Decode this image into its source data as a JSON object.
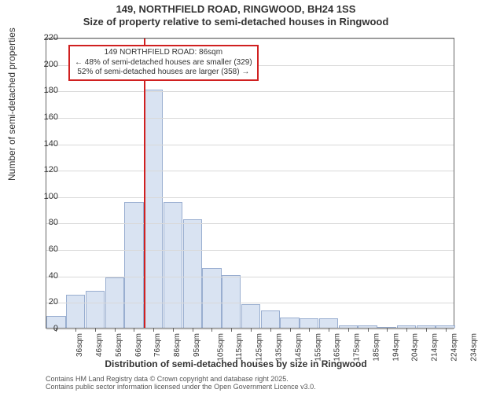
{
  "title_line1": "149, NORTHFIELD ROAD, RINGWOOD, BH24 1SS",
  "title_line2": "Size of property relative to semi-detached houses in Ringwood",
  "ylabel": "Number of semi-detached properties",
  "xlabel": "Distribution of semi-detached houses by size in Ringwood",
  "footer_line1": "Contains HM Land Registry data © Crown copyright and database right 2025.",
  "footer_line2": "Contains public sector information licensed under the Open Government Licence v3.0.",
  "chart": {
    "type": "histogram",
    "background": "#ffffff",
    "plot_border_color": "#666666",
    "grid_color": "#d9d9d9",
    "bar_fill": "#d9e3f2",
    "bar_stroke": "#99aed0",
    "marker_color": "#d02020",
    "ylim": [
      0,
      220
    ],
    "yticks": [
      0,
      20,
      40,
      60,
      80,
      100,
      120,
      140,
      160,
      180,
      200,
      220
    ],
    "xticks": [
      "36sqm",
      "46sqm",
      "56sqm",
      "66sqm",
      "76sqm",
      "86sqm",
      "95sqm",
      "105sqm",
      "115sqm",
      "125sqm",
      "135sqm",
      "145sqm",
      "155sqm",
      "165sqm",
      "175sqm",
      "185sqm",
      "194sqm",
      "204sqm",
      "214sqm",
      "224sqm",
      "234sqm"
    ],
    "values": [
      9,
      25,
      28,
      38,
      95,
      180,
      95,
      82,
      45,
      40,
      18,
      13,
      8,
      7,
      7,
      2,
      2,
      0,
      2,
      2,
      2
    ],
    "marker_index": 5,
    "callout": {
      "line1": "149 NORTHFIELD ROAD: 86sqm",
      "line2": "← 48% of semi-detached houses are smaller (329)",
      "line3": "52% of semi-detached houses are larger (358) →"
    },
    "axis_fontsize": 11,
    "xtick_fontsize": 10,
    "label_fontsize": 12,
    "title_fontsize": 13,
    "callout_fontsize": 10
  }
}
